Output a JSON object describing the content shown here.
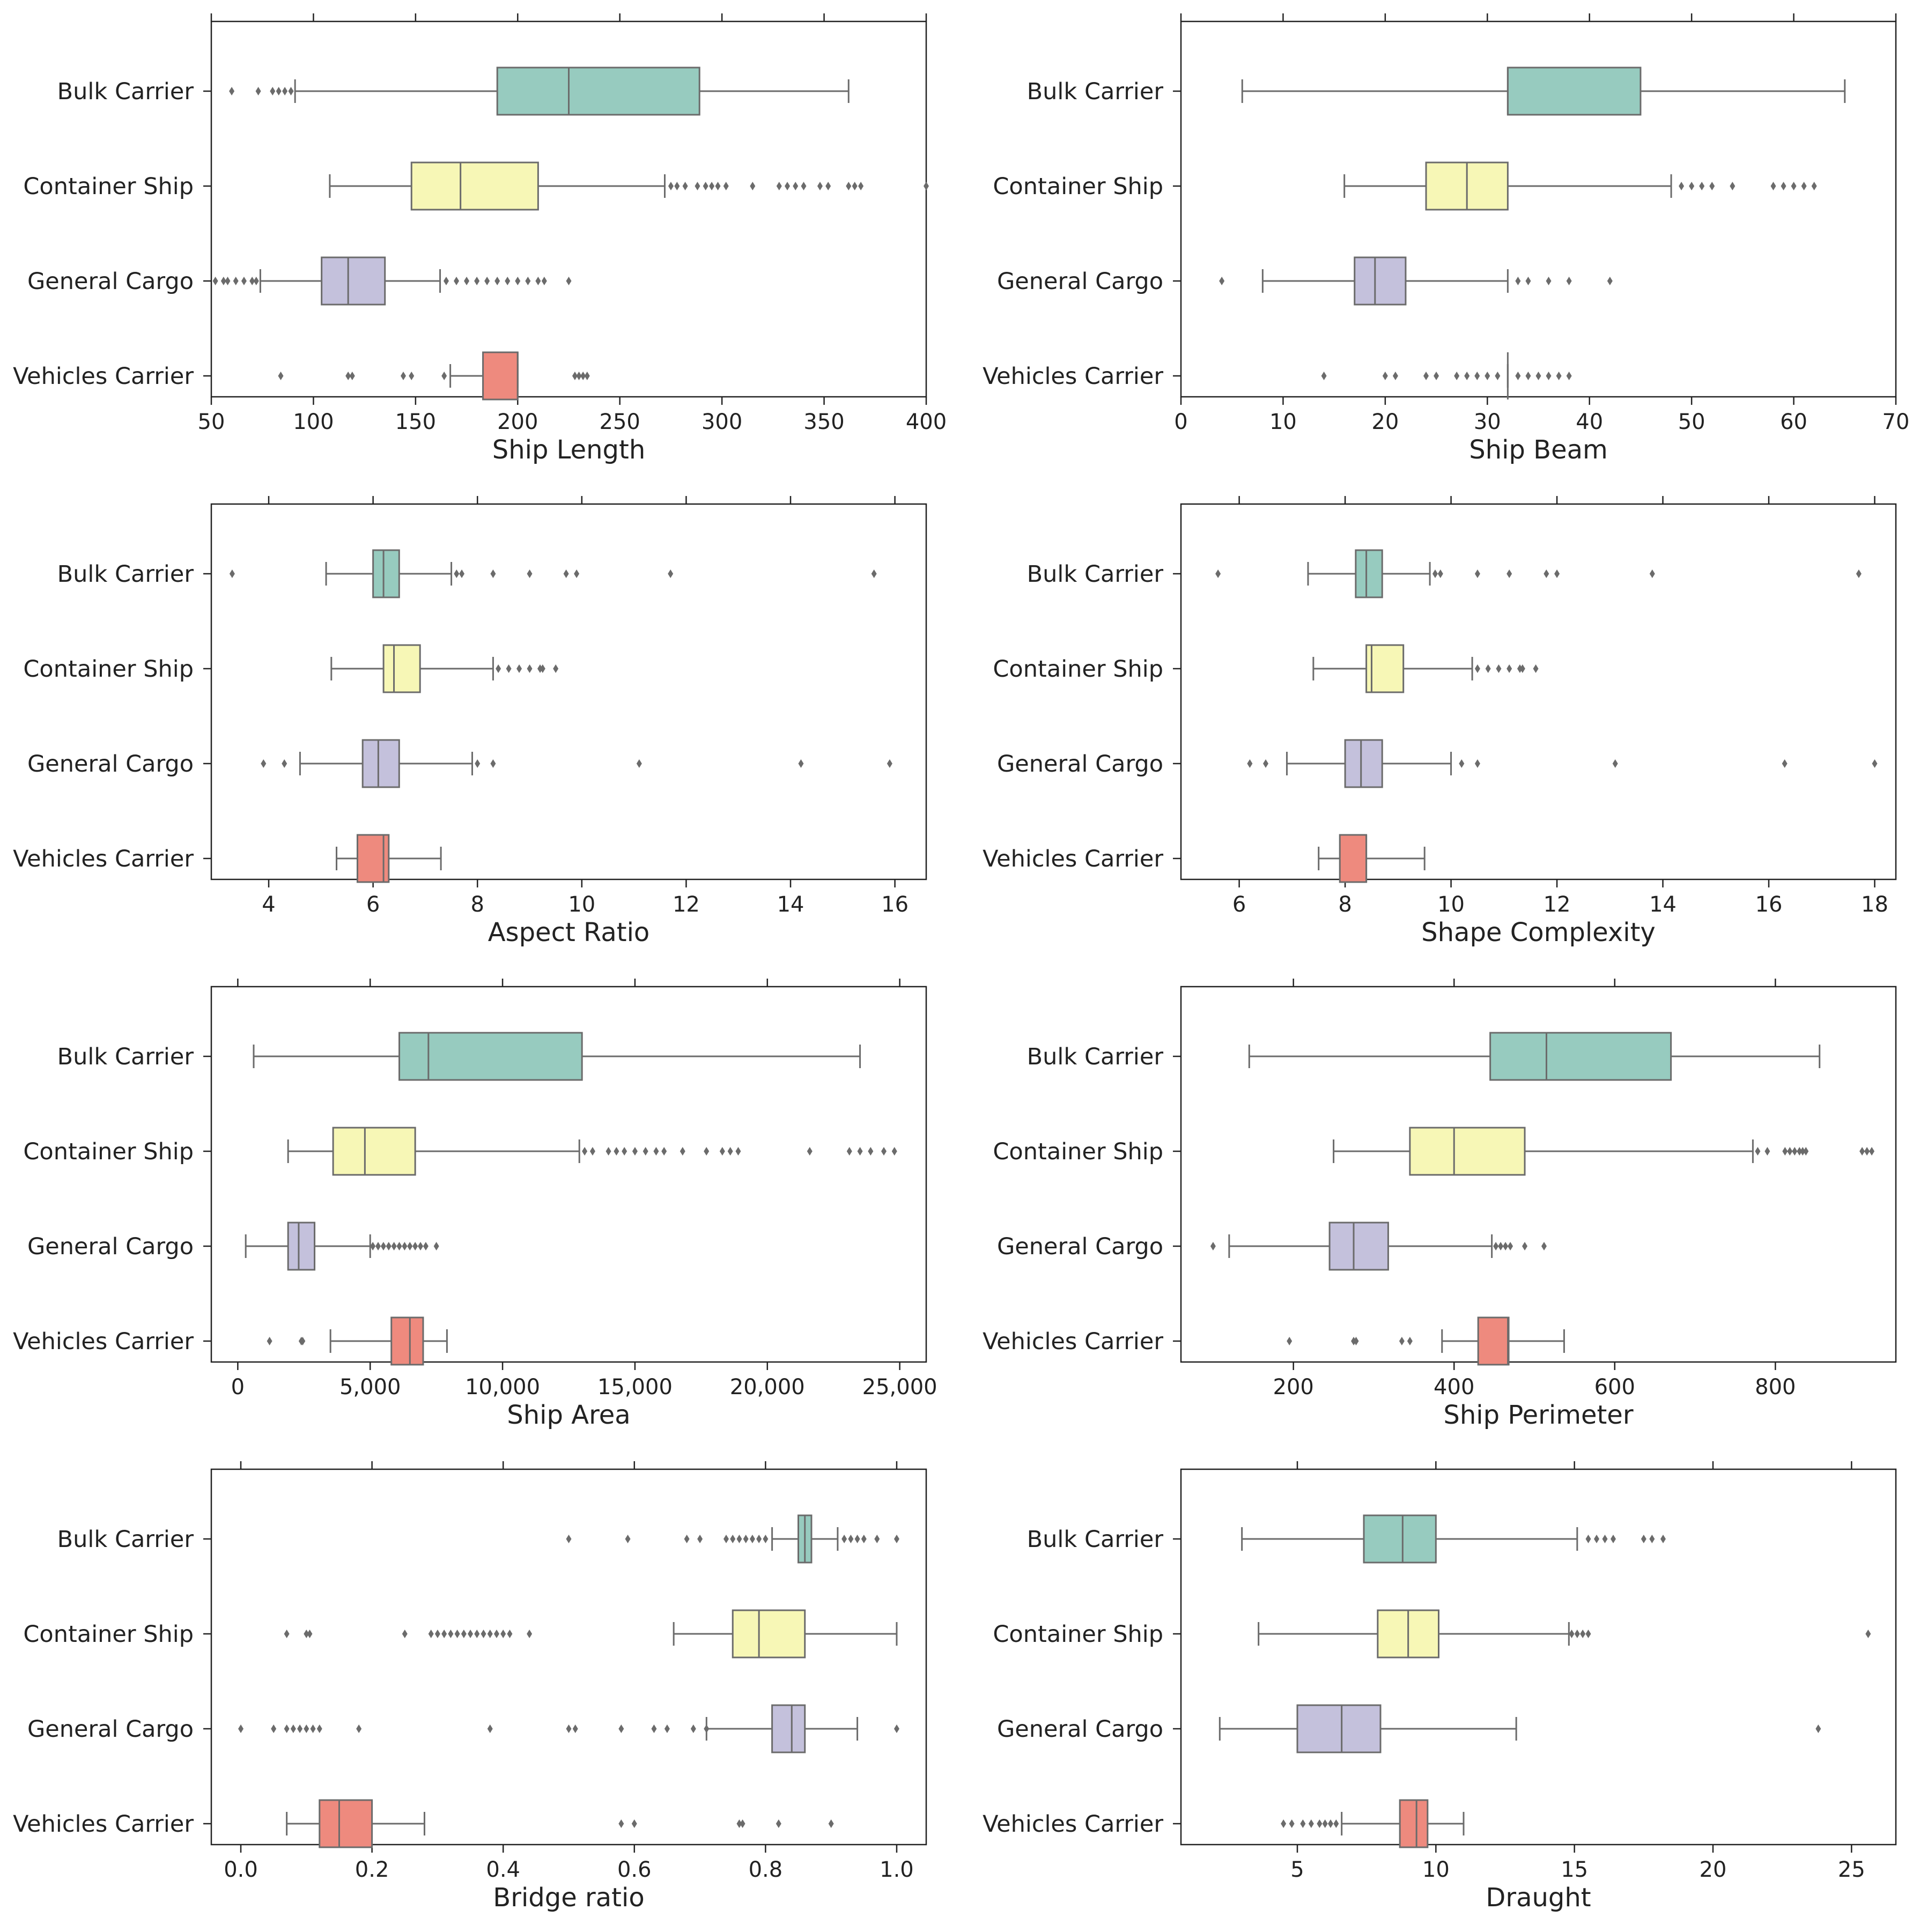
{
  "colors": {
    "Bulk Carrier": "#97cbbf",
    "Container Ship": "#f7f7b6",
    "General Cargo": "#c4c1dc",
    "Vehicles Carrier": "#ee8a7e",
    "line": "#6b6b6b",
    "frame": "#222222"
  },
  "chart_data": [
    {
      "type": "box",
      "title": "",
      "xlabel": "Ship Length",
      "xlim": [
        50,
        400
      ],
      "xticks": [
        50,
        100,
        150,
        200,
        250,
        300,
        350,
        400
      ],
      "tick_labels": [
        "50",
        "100",
        "150",
        "200",
        "250",
        "300",
        "350",
        "400"
      ],
      "categories": [
        "Bulk Carrier",
        "Container Ship",
        "General Cargo",
        "Vehicles Carrier"
      ],
      "boxes": [
        {
          "category": "Bulk Carrier",
          "whisker_low": 91,
          "q1": 190,
          "median": 225,
          "q3": 289,
          "whisker_high": 362,
          "outliers": [
            60,
            73,
            80,
            83,
            86,
            89
          ]
        },
        {
          "category": "Container Ship",
          "whisker_low": 108,
          "q1": 148,
          "median": 172,
          "q3": 210,
          "whisker_high": 272,
          "outliers": [
            275,
            278,
            282,
            288,
            292,
            295,
            298,
            302,
            315,
            328,
            332,
            336,
            340,
            348,
            352,
            362,
            365,
            368,
            400
          ]
        },
        {
          "category": "General Cargo",
          "whisker_low": 74,
          "q1": 104,
          "median": 117,
          "q3": 135,
          "whisker_high": 162,
          "outliers": [
            52,
            56,
            58,
            62,
            66,
            70,
            72,
            165,
            170,
            175,
            180,
            185,
            190,
            195,
            200,
            205,
            210,
            213,
            225
          ]
        },
        {
          "category": "Vehicles Carrier",
          "whisker_low": 167,
          "q1": 183,
          "median": 200,
          "q3": 200,
          "whisker_high": 200,
          "outliers": [
            84,
            117,
            119,
            144,
            148,
            164,
            228,
            230,
            232,
            234
          ]
        }
      ]
    },
    {
      "type": "box",
      "title": "",
      "xlabel": "Ship Beam",
      "xlim": [
        0,
        70
      ],
      "xticks": [
        0,
        10,
        20,
        30,
        40,
        50,
        60,
        70
      ],
      "tick_labels": [
        "0",
        "10",
        "20",
        "30",
        "40",
        "50",
        "60",
        "70"
      ],
      "categories": [
        "Bulk Carrier",
        "Container Ship",
        "General Cargo",
        "Vehicles Carrier"
      ],
      "boxes": [
        {
          "category": "Bulk Carrier",
          "whisker_low": 6,
          "q1": 32,
          "median": 32,
          "q3": 45,
          "whisker_high": 65,
          "outliers": []
        },
        {
          "category": "Container Ship",
          "whisker_low": 16,
          "q1": 24,
          "median": 28,
          "q3": 32,
          "whisker_high": 48,
          "outliers": [
            49,
            50,
            51,
            52,
            54,
            58,
            59,
            60,
            61,
            62
          ]
        },
        {
          "category": "General Cargo",
          "whisker_low": 8,
          "q1": 17,
          "median": 19,
          "q3": 22,
          "whisker_high": 32,
          "outliers": [
            4,
            33,
            34,
            36,
            38,
            42
          ]
        },
        {
          "category": "Vehicles Carrier",
          "whisker_low": 32,
          "q1": 32,
          "median": 32,
          "q3": 32,
          "whisker_high": 32,
          "outliers": [
            14,
            20,
            21,
            24,
            25,
            27,
            28,
            29,
            30,
            31,
            33,
            34,
            35,
            36,
            37,
            38
          ]
        }
      ]
    },
    {
      "type": "box",
      "title": "",
      "xlabel": "Aspect Ratio",
      "xlim": [
        2.9,
        16.6
      ],
      "xticks": [
        4,
        6,
        8,
        10,
        12,
        14,
        16
      ],
      "tick_labels": [
        "4",
        "6",
        "8",
        "10",
        "12",
        "14",
        "16"
      ],
      "categories": [
        "Bulk Carrier",
        "Container Ship",
        "General Cargo",
        "Vehicles Carrier"
      ],
      "boxes": [
        {
          "category": "Bulk Carrier",
          "whisker_low": 5.1,
          "q1": 6.0,
          "median": 6.2,
          "q3": 6.5,
          "whisker_high": 7.5,
          "outliers": [
            3.3,
            7.6,
            7.7,
            8.3,
            9.0,
            9.7,
            9.9,
            11.7,
            15.6
          ]
        },
        {
          "category": "Container Ship",
          "whisker_low": 5.2,
          "q1": 6.2,
          "median": 6.4,
          "q3": 6.9,
          "whisker_high": 8.3,
          "outliers": [
            8.4,
            8.6,
            8.8,
            9.0,
            9.2,
            9.25,
            9.5
          ]
        },
        {
          "category": "General Cargo",
          "whisker_low": 4.6,
          "q1": 5.8,
          "median": 6.1,
          "q3": 6.5,
          "whisker_high": 7.9,
          "outliers": [
            3.9,
            4.3,
            8.0,
            8.3,
            11.1,
            14.2,
            15.9
          ]
        },
        {
          "category": "Vehicles Carrier",
          "whisker_low": 5.3,
          "q1": 5.7,
          "median": 6.2,
          "q3": 6.3,
          "whisker_high": 7.3,
          "outliers": []
        }
      ]
    },
    {
      "type": "box",
      "title": "",
      "xlabel": "Shape Complexity",
      "xlim": [
        4.9,
        18.4
      ],
      "xticks": [
        6,
        8,
        10,
        12,
        14,
        16,
        18
      ],
      "tick_labels": [
        "6",
        "8",
        "10",
        "12",
        "14",
        "16",
        "18"
      ],
      "categories": [
        "Bulk Carrier",
        "Container Ship",
        "General Cargo",
        "Vehicles Carrier"
      ],
      "boxes": [
        {
          "category": "Bulk Carrier",
          "whisker_low": 7.3,
          "q1": 8.2,
          "median": 8.4,
          "q3": 8.7,
          "whisker_high": 9.6,
          "outliers": [
            5.6,
            9.7,
            9.8,
            10.5,
            11.1,
            11.8,
            12.0,
            13.8,
            17.7
          ]
        },
        {
          "category": "Container Ship",
          "whisker_low": 7.4,
          "q1": 8.4,
          "median": 8.5,
          "q3": 9.1,
          "whisker_high": 10.4,
          "outliers": [
            10.5,
            10.7,
            10.9,
            11.1,
            11.3,
            11.35,
            11.6
          ]
        },
        {
          "category": "General Cargo",
          "whisker_low": 6.9,
          "q1": 8.0,
          "median": 8.3,
          "q3": 8.7,
          "whisker_high": 10.0,
          "outliers": [
            6.2,
            6.5,
            10.2,
            10.5,
            13.1,
            16.3,
            18.0
          ]
        },
        {
          "category": "Vehicles Carrier",
          "whisker_low": 7.5,
          "q1": 7.9,
          "median": 8.4,
          "q3": 8.4,
          "whisker_high": 9.5,
          "outliers": []
        }
      ]
    },
    {
      "type": "box",
      "title": "",
      "xlabel": "Ship Area",
      "xlim": [
        -1000,
        26000
      ],
      "xticks": [
        0,
        5000,
        10000,
        15000,
        20000,
        25000
      ],
      "tick_labels": [
        "0",
        "5,000",
        "10,000",
        "15,000",
        "20,000",
        "25,000"
      ],
      "categories": [
        "Bulk Carrier",
        "Container Ship",
        "General Cargo",
        "Vehicles Carrier"
      ],
      "boxes": [
        {
          "category": "Bulk Carrier",
          "whisker_low": 600,
          "q1": 6100,
          "median": 7200,
          "q3": 13000,
          "whisker_high": 23500,
          "outliers": []
        },
        {
          "category": "Container Ship",
          "whisker_low": 1900,
          "q1": 3600,
          "median": 4800,
          "q3": 6700,
          "whisker_high": 12900,
          "outliers": [
            13100,
            13400,
            14000,
            14300,
            14600,
            15000,
            15400,
            15800,
            16100,
            16800,
            17700,
            18300,
            18600,
            18900,
            21600,
            23100,
            23500,
            23900,
            24400,
            24800
          ]
        },
        {
          "category": "General Cargo",
          "whisker_low": 300,
          "q1": 1900,
          "median": 2300,
          "q3": 2900,
          "whisker_high": 5000,
          "outliers": [
            5100,
            5300,
            5500,
            5700,
            5900,
            6100,
            6300,
            6500,
            6700,
            6900,
            7100,
            7500
          ]
        },
        {
          "category": "Vehicles Carrier",
          "whisker_low": 3500,
          "q1": 5800,
          "median": 6500,
          "q3": 7000,
          "whisker_high": 7900,
          "outliers": [
            1200,
            2400,
            2450
          ]
        }
      ]
    },
    {
      "type": "box",
      "title": "",
      "xlabel": "Ship Perimeter",
      "xlim": [
        60,
        950
      ],
      "xticks": [
        200,
        400,
        600,
        800
      ],
      "tick_labels": [
        "200",
        "400",
        "600",
        "800"
      ],
      "categories": [
        "Bulk Carrier",
        "Container Ship",
        "General Cargo",
        "Vehicles Carrier"
      ],
      "boxes": [
        {
          "category": "Bulk Carrier",
          "whisker_low": 145,
          "q1": 445,
          "median": 515,
          "q3": 670,
          "whisker_high": 855,
          "outliers": []
        },
        {
          "category": "Container Ship",
          "whisker_low": 250,
          "q1": 345,
          "median": 400,
          "q3": 488,
          "whisker_high": 772,
          "outliers": [
            778,
            790,
            812,
            818,
            824,
            830,
            834,
            838,
            908,
            914,
            920
          ]
        },
        {
          "category": "General Cargo",
          "whisker_low": 120,
          "q1": 245,
          "median": 275,
          "q3": 318,
          "whisker_high": 447,
          "outliers": [
            100,
            452,
            458,
            464,
            470,
            488,
            512
          ]
        },
        {
          "category": "Vehicles Carrier",
          "whisker_low": 385,
          "q1": 430,
          "median": 467,
          "q3": 468,
          "whisker_high": 537,
          "outliers": [
            195,
            275,
            278,
            335,
            345
          ]
        }
      ]
    },
    {
      "type": "box",
      "title": "",
      "xlabel": "Bridge ratio",
      "xlim": [
        -0.045,
        1.045
      ],
      "xticks": [
        0.0,
        0.2,
        0.4,
        0.6,
        0.8,
        1.0
      ],
      "tick_labels": [
        "0.0",
        "0.2",
        "0.4",
        "0.6",
        "0.8",
        "1.0"
      ],
      "categories": [
        "Bulk Carrier",
        "Container Ship",
        "General Cargo",
        "Vehicles Carrier"
      ],
      "boxes": [
        {
          "category": "Bulk Carrier",
          "whisker_low": 0.81,
          "q1": 0.85,
          "median": 0.86,
          "q3": 0.87,
          "whisker_high": 0.91,
          "outliers": [
            0.5,
            0.59,
            0.68,
            0.7,
            0.74,
            0.75,
            0.76,
            0.77,
            0.78,
            0.79,
            0.8,
            0.92,
            0.93,
            0.94,
            0.95,
            0.97,
            1.0
          ]
        },
        {
          "category": "Container Ship",
          "whisker_low": 0.66,
          "q1": 0.75,
          "median": 0.79,
          "q3": 0.86,
          "whisker_high": 1.0,
          "outliers": [
            0.07,
            0.1,
            0.105,
            0.25,
            0.29,
            0.3,
            0.31,
            0.32,
            0.33,
            0.34,
            0.35,
            0.36,
            0.37,
            0.38,
            0.39,
            0.4,
            0.41,
            0.44
          ]
        },
        {
          "category": "General Cargo",
          "whisker_low": 0.71,
          "q1": 0.81,
          "median": 0.84,
          "q3": 0.86,
          "whisker_high": 0.94,
          "outliers": [
            0.0,
            0.05,
            0.07,
            0.08,
            0.09,
            0.1,
            0.11,
            0.12,
            0.18,
            0.38,
            0.5,
            0.51,
            0.58,
            0.63,
            0.65,
            0.69,
            0.71,
            1.0
          ]
        },
        {
          "category": "Vehicles Carrier",
          "whisker_low": 0.07,
          "q1": 0.12,
          "median": 0.15,
          "q3": 0.2,
          "whisker_high": 0.28,
          "outliers": [
            0.58,
            0.6,
            0.76,
            0.765,
            0.82,
            0.9
          ]
        }
      ]
    },
    {
      "type": "box",
      "title": "",
      "xlabel": "Draught",
      "xlim": [
        0.8,
        26.6
      ],
      "xticks": [
        5,
        10,
        15,
        20,
        25
      ],
      "tick_labels": [
        "5",
        "10",
        "15",
        "20",
        "25"
      ],
      "categories": [
        "Bulk Carrier",
        "Container Ship",
        "General Cargo",
        "Vehicles Carrier"
      ],
      "boxes": [
        {
          "category": "Bulk Carrier",
          "whisker_low": 3.0,
          "q1": 7.4,
          "median": 8.8,
          "q3": 10.0,
          "whisker_high": 15.1,
          "outliers": [
            15.5,
            15.8,
            16.1,
            16.4,
            17.5,
            17.8,
            18.2
          ]
        },
        {
          "category": "Container Ship",
          "whisker_low": 3.6,
          "q1": 7.9,
          "median": 9.0,
          "q3": 10.1,
          "whisker_high": 14.8,
          "outliers": [
            14.9,
            15.1,
            15.3,
            15.5,
            25.6
          ]
        },
        {
          "category": "General Cargo",
          "whisker_low": 2.2,
          "q1": 5.0,
          "median": 6.6,
          "q3": 8.0,
          "whisker_high": 12.9,
          "outliers": [
            23.8
          ]
        },
        {
          "category": "Vehicles Carrier",
          "whisker_low": 6.6,
          "q1": 8.7,
          "median": 9.3,
          "q3": 9.7,
          "whisker_high": 11.0,
          "outliers": [
            4.5,
            4.8,
            5.2,
            5.5,
            5.8,
            6.0,
            6.2,
            6.4
          ]
        }
      ]
    }
  ]
}
